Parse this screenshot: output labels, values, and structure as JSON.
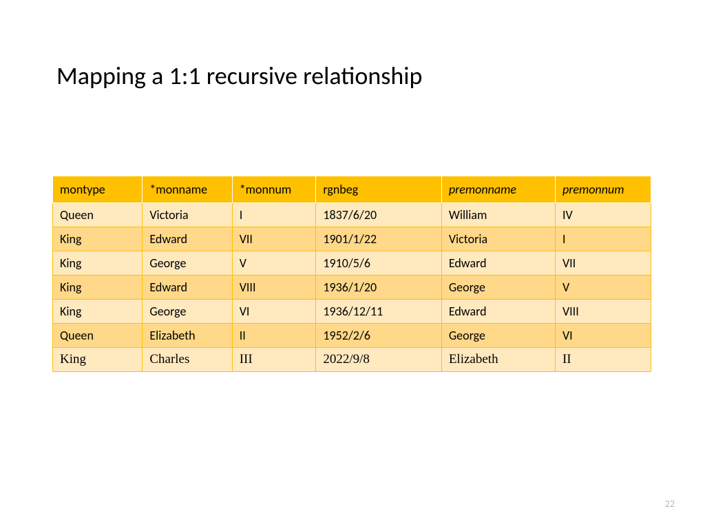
{
  "slide": {
    "title": "Mapping a 1:1 recursive relationship",
    "page_number": "22"
  },
  "table": {
    "type": "table",
    "header_bg": "#ffc000",
    "row_odd_bg": "#ffe9bf",
    "row_even_bg": "#ffd88a",
    "border_color": "#ffc000",
    "header_border_color": "#ffffff",
    "columns": [
      {
        "label": "montype",
        "italic": false,
        "width_pct": 15
      },
      {
        "label": "*monname",
        "italic": false,
        "width_pct": 15
      },
      {
        "label": "*monnum",
        "italic": false,
        "width_pct": 14
      },
      {
        "label": "rgnbeg",
        "italic": false,
        "width_pct": 21
      },
      {
        "label": "premonname",
        "italic": true,
        "width_pct": 19
      },
      {
        "label": "premonnum",
        "italic": true,
        "width_pct": 16
      }
    ],
    "rows": [
      {
        "cells": [
          "Queen",
          "Victoria",
          "I",
          "1837/6/20",
          "William",
          "IV"
        ],
        "serif": false
      },
      {
        "cells": [
          "King",
          "Edward",
          "VII",
          "1901/1/22",
          "Victoria",
          "I"
        ],
        "serif": false
      },
      {
        "cells": [
          "King",
          "George",
          "V",
          "1910/5/6",
          "Edward",
          "VII"
        ],
        "serif": false
      },
      {
        "cells": [
          "King",
          "Edward",
          "VIII",
          "1936/1/20",
          "George",
          "V"
        ],
        "serif": false
      },
      {
        "cells": [
          "King",
          "George",
          "VI",
          "1936/12/11",
          "Edward",
          "VIII"
        ],
        "serif": false
      },
      {
        "cells": [
          "Queen",
          "Elizabeth",
          "II",
          "1952/2/6",
          "George",
          "VI"
        ],
        "serif": false
      },
      {
        "cells": [
          "King",
          "Charles",
          "III",
          "2022/9/8",
          "Elizabeth",
          "II"
        ],
        "serif": true
      }
    ]
  }
}
